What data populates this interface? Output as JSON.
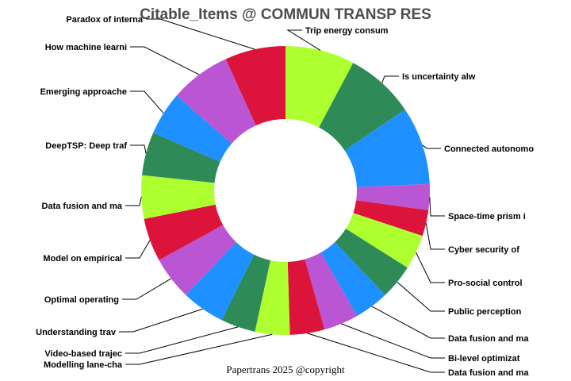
{
  "chart_data": {
    "type": "pie",
    "style": "donut",
    "title": "Citable_Items @ COMMUN TRANSP RES",
    "footer": "Papertrans 2025 @copyright",
    "start": "top, clockwise",
    "slices": [
      {
        "label": "Trip energy consum",
        "value": 8,
        "color": "#adff2f"
      },
      {
        "label": "Is uncertainty alw",
        "value": 8,
        "color": "#2e8b57"
      },
      {
        "label": "Connected autonomo",
        "value": 9,
        "color": "#1e90ff"
      },
      {
        "label": "Space-time prism i",
        "value": 3,
        "color": "#ba55d3"
      },
      {
        "label": "Cyber security of",
        "value": 3,
        "color": "#dc143c"
      },
      {
        "label": "Pro-social control",
        "value": 4,
        "color": "#adff2f"
      },
      {
        "label": "Public perception",
        "value": 4,
        "color": "#2e8b57"
      },
      {
        "label": "Data fusion and ma",
        "value": 4,
        "color": "#1e90ff"
      },
      {
        "label": "Bi-level optimizat",
        "value": 4,
        "color": "#ba55d3"
      },
      {
        "label": "Data fusion and ma",
        "value": 4,
        "color": "#dc143c"
      },
      {
        "label": "Modelling lane-cha",
        "value": 4,
        "color": "#adff2f"
      },
      {
        "label": "Video-based trajec",
        "value": 4,
        "color": "#2e8b57"
      },
      {
        "label": "Understanding trav",
        "value": 5,
        "color": "#1e90ff"
      },
      {
        "label": "Optimal operating ",
        "value": 5,
        "color": "#ba55d3"
      },
      {
        "label": "Model on empirical",
        "value": 5,
        "color": "#dc143c"
      },
      {
        "label": "Data fusion and ma",
        "value": 5,
        "color": "#adff2f"
      },
      {
        "label": "DeepTSP: Deep traf",
        "value": 5,
        "color": "#2e8b57"
      },
      {
        "label": "Emerging approache",
        "value": 5,
        "color": "#1e90ff"
      },
      {
        "label": "How machine learni",
        "value": 7,
        "color": "#ba55d3"
      },
      {
        "label": "Paradox of interna",
        "value": 7,
        "color": "#dc143c"
      }
    ]
  }
}
